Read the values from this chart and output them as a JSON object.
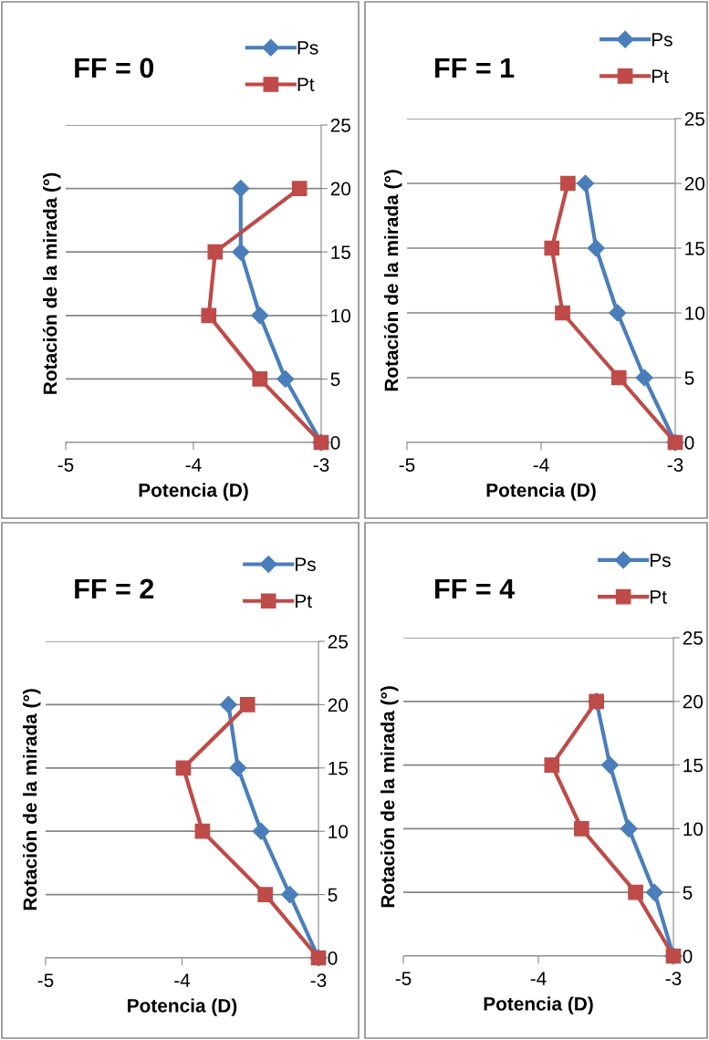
{
  "chart_data": [
    {
      "type": "line",
      "title": "FF = 0",
      "xlabel": "Potencia (D)",
      "ylabel": "Rotación de la mirada (°)",
      "xlim": [
        -5,
        -3
      ],
      "xticks": [
        -5,
        -4,
        -3
      ],
      "ylim": [
        0,
        25
      ],
      "yticks": [
        0,
        5,
        10,
        15,
        20,
        25
      ],
      "grid": "y",
      "legend": "top right",
      "series": [
        {
          "name": "Ps",
          "color": "#4a7ebb",
          "marker": "diamond",
          "x": [
            -3,
            -3.28,
            -3.48,
            -3.63,
            -3.63
          ],
          "values": [
            0,
            5,
            10,
            15,
            20
          ]
        },
        {
          "name": "Pt",
          "color": "#be4b48",
          "marker": "square",
          "x": [
            -3,
            -3.48,
            -3.88,
            -3.83,
            -3.17
          ],
          "values": [
            0,
            5,
            10,
            15,
            20
          ]
        }
      ]
    },
    {
      "type": "line",
      "title": "FF = 1",
      "xlabel": "Potencia (D)",
      "ylabel": "Rotación de la mirada (°)",
      "xlim": [
        -5,
        -3
      ],
      "xticks": [
        -5,
        -4,
        -3
      ],
      "ylim": [
        0,
        25
      ],
      "yticks": [
        0,
        5,
        10,
        15,
        20,
        25
      ],
      "grid": "y",
      "legend": "top right",
      "series": [
        {
          "name": "Ps",
          "color": "#4a7ebb",
          "marker": "diamond",
          "x": [
            -3,
            -3.23,
            -3.43,
            -3.59,
            -3.67
          ],
          "values": [
            0,
            5,
            10,
            15,
            20
          ]
        },
        {
          "name": "Pt",
          "color": "#be4b48",
          "marker": "square",
          "x": [
            -3,
            -3.42,
            -3.84,
            -3.92,
            -3.8
          ],
          "values": [
            0,
            5,
            10,
            15,
            20
          ]
        }
      ]
    },
    {
      "type": "line",
      "title": "FF = 2",
      "xlabel": "Potencia (D)",
      "ylabel": "Rotación de la mirada (°)",
      "xlim": [
        -5,
        -3
      ],
      "xticks": [
        -5,
        -4,
        -3
      ],
      "ylim": [
        0,
        25
      ],
      "yticks": [
        0,
        5,
        10,
        15,
        20,
        25
      ],
      "grid": "y",
      "legend": "top right",
      "series": [
        {
          "name": "Ps",
          "color": "#4a7ebb",
          "marker": "diamond",
          "x": [
            -3,
            -3.21,
            -3.42,
            -3.59,
            -3.66
          ],
          "values": [
            0,
            5,
            10,
            15,
            20
          ]
        },
        {
          "name": "Pt",
          "color": "#be4b48",
          "marker": "square",
          "x": [
            -3,
            -3.39,
            -3.85,
            -3.99,
            -3.52
          ],
          "values": [
            0,
            5,
            10,
            15,
            20
          ]
        }
      ]
    },
    {
      "type": "line",
      "title": "FF = 4",
      "xlabel": "Potencia (D)",
      "ylabel": "Rotación de la mirada (°)",
      "xlim": [
        -5,
        -3
      ],
      "xticks": [
        -5,
        -4,
        -3
      ],
      "ylim": [
        0,
        25
      ],
      "yticks": [
        0,
        5,
        10,
        15,
        20,
        25
      ],
      "grid": "y",
      "legend": "top right",
      "series": [
        {
          "name": "Ps",
          "color": "#4a7ebb",
          "marker": "diamond",
          "x": [
            -3,
            -3.14,
            -3.33,
            -3.47,
            -3.57
          ],
          "values": [
            0,
            5,
            10,
            15,
            20
          ]
        },
        {
          "name": "Pt",
          "color": "#be4b48",
          "marker": "square",
          "x": [
            -3,
            -3.28,
            -3.68,
            -3.9,
            -3.57
          ],
          "values": [
            0,
            5,
            10,
            15,
            20
          ]
        }
      ]
    }
  ]
}
